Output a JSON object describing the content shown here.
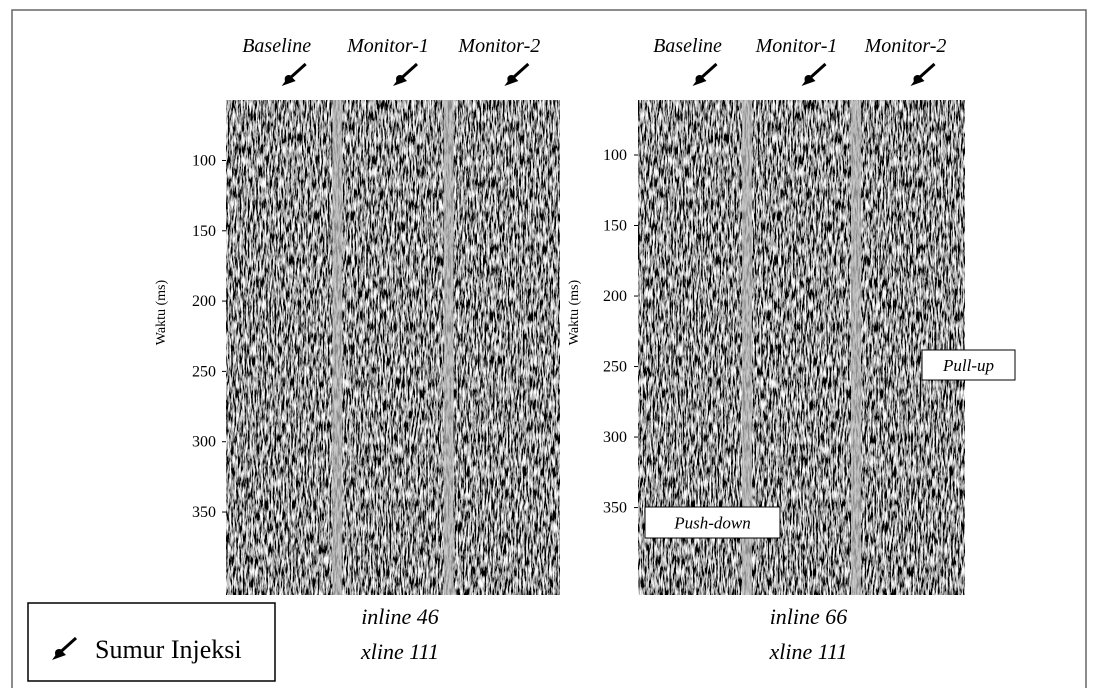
{
  "panels": [
    {
      "columns": [
        "Baseline",
        "Monitor-1",
        "Monitor-2"
      ],
      "y_label": "Waktu (ms)",
      "ylim": [
        57,
        409
      ],
      "yticks": [
        100,
        150,
        200,
        250,
        300,
        350
      ],
      "caption": [
        "inline 46",
        "xline 111"
      ]
    },
    {
      "columns": [
        "Baseline",
        "Monitor-1",
        "Monitor-2"
      ],
      "y_label": "Waktu (ms)",
      "ylim": [
        61,
        412
      ],
      "yticks": [
        100,
        150,
        200,
        250,
        300,
        350
      ],
      "caption": [
        "inline 66",
        "xline 111"
      ],
      "annotations": [
        "Push-down",
        "Pull-up"
      ]
    }
  ],
  "legend": {
    "label": "Sumur Injeksi"
  }
}
